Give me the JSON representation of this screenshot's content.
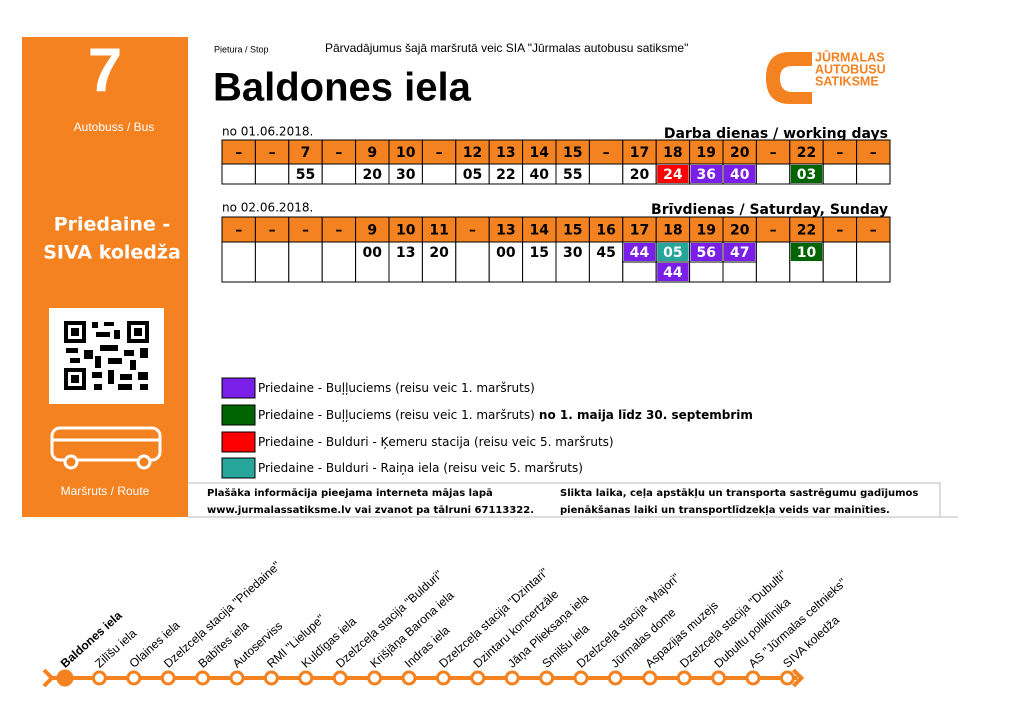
{
  "side": {
    "route_number": "7",
    "vehicle": "Autobuss / Bus",
    "destination": [
      "Priedaine -",
      "SIVA koledža"
    ],
    "route_label": "Maršruts / Route"
  },
  "header": {
    "stop_label": "Pietura / Stop",
    "operator": "Pārvadājumus šajā maršrutā veic SIA \"Jūrmalas autobusu satiksme\"",
    "stop_name": "Baldones iela",
    "logo": [
      "JŪRMALAS",
      "AUTOBUSU",
      "SATIKSME"
    ]
  },
  "timetables": [
    {
      "date": "no 01.06.2018.",
      "label": "Darba dienas / working days",
      "hours": [
        "–",
        "–",
        "7",
        "–",
        "9",
        "10",
        "–",
        "12",
        "13",
        "14",
        "15",
        "–",
        "17",
        "18",
        "19",
        "20",
        "–",
        "22",
        "–",
        "–"
      ],
      "minutes": [
        [],
        [],
        [
          "55"
        ],
        [],
        [
          "20"
        ],
        [
          "30"
        ],
        [],
        [
          "05"
        ],
        [
          "22"
        ],
        [
          "40"
        ],
        [
          "55"
        ],
        [],
        [
          "20"
        ],
        [
          {
            "text": "24",
            "color": "#ff0000"
          }
        ],
        [
          {
            "text": "36",
            "color": "#7a1fe8"
          }
        ],
        [
          {
            "text": "40",
            "color": "#7a1fe8"
          }
        ],
        [],
        [
          {
            "text": "03",
            "color": "#006400"
          }
        ],
        [],
        []
      ]
    },
    {
      "date": "no 02.06.2018.",
      "label": "Brīvdienas / Saturday, Sunday",
      "hours": [
        "–",
        "–",
        "–",
        "–",
        "9",
        "10",
        "11",
        "–",
        "13",
        "14",
        "15",
        "16",
        "17",
        "18",
        "19",
        "20",
        "–",
        "22",
        "–",
        "–"
      ],
      "minutes": [
        [],
        [],
        [],
        [],
        [
          "00"
        ],
        [
          "13"
        ],
        [
          "20"
        ],
        [],
        [
          "00"
        ],
        [
          "15"
        ],
        [
          "30"
        ],
        [
          "45"
        ],
        [
          {
            "text": "44",
            "color": "#7a1fe8"
          }
        ],
        [
          {
            "text": "05",
            "color": "#26a69a"
          },
          {
            "text": "44",
            "color": "#7a1fe8"
          }
        ],
        [
          {
            "text": "56",
            "color": "#7a1fe8"
          }
        ],
        [
          {
            "text": "47",
            "color": "#7a1fe8"
          }
        ],
        [],
        [
          {
            "text": "10",
            "color": "#006400"
          }
        ],
        [],
        []
      ]
    }
  ],
  "legend": [
    {
      "color": "#7a1fe8",
      "text": "Priedaine - Buļļuciems (reisu veic 1. maršruts)"
    },
    {
      "color": "#006400",
      "text": "Priedaine - Buļļuciems (reisu veic 1. maršruts)",
      "bold": " no 1. maija līdz 30. septembrim"
    },
    {
      "color": "#ff0000",
      "text": "Priedaine - Bulduri - Ķemeru stacija (reisu veic 5. maršruts)"
    },
    {
      "color": "#26a69a",
      "text": "Priedaine - Bulduri - Raiņa iela (reisu veic 5. maršruts)"
    }
  ],
  "footer": {
    "left": [
      "Plašāka informācija pieejama interneta mājas lapā",
      "www.jurmalassatiksme.lv vai zvanot pa  tālruni 67113322."
    ],
    "right": [
      "Slikta laika,  ceļa apstākļu un transporta sastrēgumu gadījumos",
      "pienākšanas laiki un transportlīdzekļa veids var mainīties."
    ]
  },
  "route": {
    "stops": [
      "Baldones iela",
      "Zilīšu iela",
      "Olaines iela",
      "Dzelzceļa stacija \"Priedaine\"",
      "Babītes iela",
      "Autoserviss",
      "RMI \"Lielupe\"",
      "Kuldīgas iela",
      "Dzelzceļa stacija \"Bulduri\"",
      "Krišjāņa Barona iela",
      "Indras iela",
      "Dzelzceļa stacija \"Dzintari\"",
      "Dzintaru koncertzāle",
      "Jāņa Plieksaņa iela",
      "Smilšu iela",
      "Dzelzceļa stacija \"Majori\"",
      "Jūrmalas dome",
      "Aspazijas muzejs",
      "Dzelzceļa stacija \"Dubulti\"",
      "Dubultu poliklīnika",
      "AS \"Jūrmalas celtnieks\"",
      "SIVA koledža"
    ]
  }
}
